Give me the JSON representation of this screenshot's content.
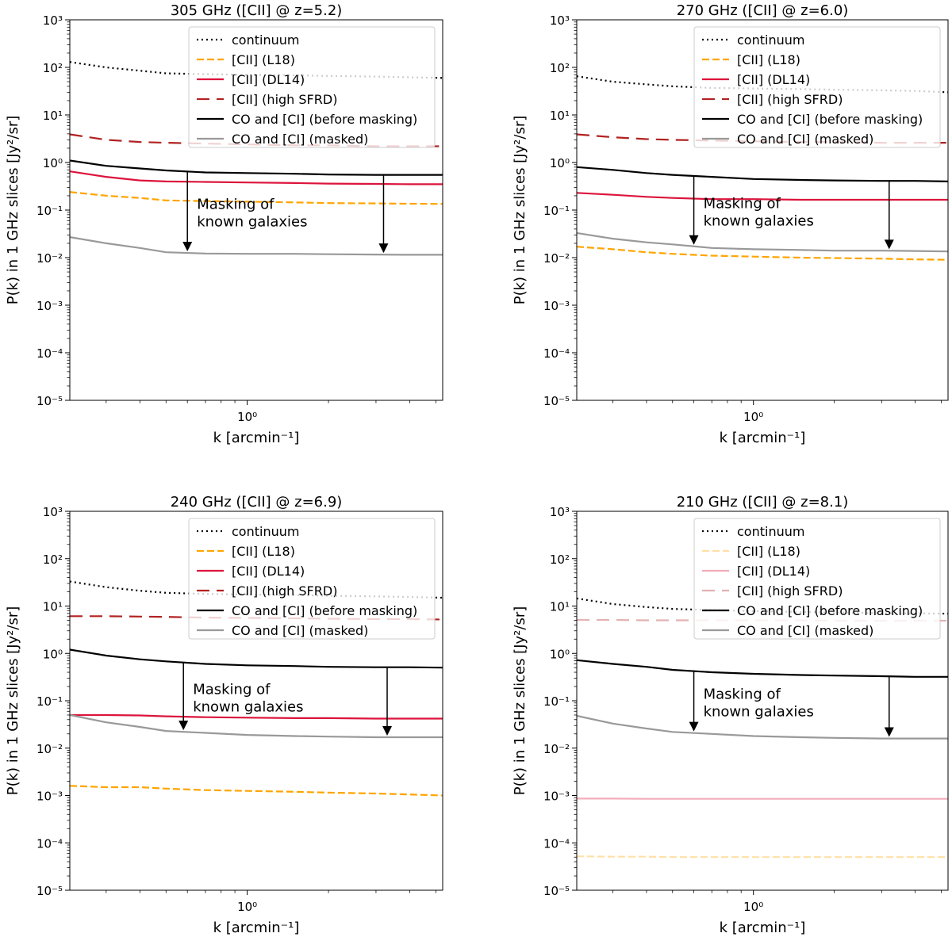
{
  "chart_data": [
    {
      "type": "line",
      "title": "305 GHz ([CII] @ z=5.2)",
      "xlabel": "k [arcmin⁻¹]",
      "ylabel": "P(k) in 1 GHz slices [Jy²/sr]",
      "xscale": "log",
      "yscale": "log",
      "xlim": [
        0.22,
        5.3
      ],
      "ylim": [
        1e-05,
        1000
      ],
      "x_tick_labels": [
        "10⁰"
      ],
      "y_tick_labels": [
        "10⁻⁵",
        "10⁻⁴",
        "10⁻³",
        "10⁻²",
        "10⁻¹",
        "10⁰",
        "10¹",
        "10²",
        "10³"
      ],
      "legend_position": "top-right",
      "annotation": {
        "line1": "Masking of",
        "line2": "known galaxies",
        "arrows_at_k": [
          0.6,
          3.2
        ]
      },
      "series": [
        {
          "name": "continuum",
          "style": "dotted",
          "color": "#000000",
          "faded": false,
          "x": [
            0.22,
            0.3,
            0.4,
            0.5,
            0.7,
            1.0,
            1.5,
            2.0,
            3.0,
            4.0,
            5.3
          ],
          "y": [
            130,
            100,
            85,
            75,
            72,
            70,
            68,
            66,
            64,
            62,
            60
          ]
        },
        {
          "name": "[CII] (L18)",
          "style": "dashed",
          "color": "#ffa500",
          "faded": false,
          "x": [
            0.22,
            0.3,
            0.4,
            0.5,
            0.7,
            1.0,
            1.5,
            2.0,
            3.0,
            4.0,
            5.3
          ],
          "y": [
            0.24,
            0.2,
            0.18,
            0.16,
            0.155,
            0.15,
            0.145,
            0.14,
            0.138,
            0.136,
            0.135
          ]
        },
        {
          "name": "[CII] (DL14)",
          "style": "solid",
          "color": "#dc143c",
          "faded": false,
          "x": [
            0.22,
            0.3,
            0.4,
            0.5,
            0.7,
            1.0,
            1.5,
            2.0,
            3.0,
            4.0,
            5.3
          ],
          "y": [
            0.65,
            0.5,
            0.42,
            0.4,
            0.39,
            0.38,
            0.37,
            0.36,
            0.355,
            0.35,
            0.35
          ]
        },
        {
          "name": "[CII] (high SFRD)",
          "style": "longdash",
          "color": "#b22222",
          "faded": false,
          "x": [
            0.22,
            0.3,
            0.4,
            0.5,
            0.7,
            1.0,
            1.5,
            2.0,
            3.0,
            4.0,
            5.3
          ],
          "y": [
            3.9,
            3.0,
            2.7,
            2.6,
            2.5,
            2.4,
            2.3,
            2.3,
            2.2,
            2.2,
            2.2
          ]
        },
        {
          "name": "CO and [CI] (before masking)",
          "style": "solid",
          "color": "#000000",
          "faded": false,
          "x": [
            0.22,
            0.3,
            0.4,
            0.5,
            0.7,
            1.0,
            1.5,
            2.0,
            3.0,
            4.0,
            5.3
          ],
          "y": [
            1.1,
            0.85,
            0.75,
            0.68,
            0.62,
            0.6,
            0.58,
            0.56,
            0.55,
            0.55,
            0.55
          ]
        },
        {
          "name": "CO and [CI] (masked)",
          "style": "solid",
          "color": "#999999",
          "faded": false,
          "x": [
            0.22,
            0.3,
            0.4,
            0.5,
            0.7,
            1.0,
            1.5,
            2.0,
            3.0,
            4.0,
            5.3
          ],
          "y": [
            0.027,
            0.02,
            0.016,
            0.013,
            0.0122,
            0.012,
            0.012,
            0.0118,
            0.0116,
            0.0115,
            0.0115
          ]
        }
      ]
    },
    {
      "type": "line",
      "title": "270 GHz ([CII] @ z=6.0)",
      "xlabel": "k [arcmin⁻¹]",
      "ylabel": "P(k) in 1 GHz slices [Jy²/sr]",
      "xscale": "log",
      "yscale": "log",
      "xlim": [
        0.22,
        5.3
      ],
      "ylim": [
        1e-05,
        1000
      ],
      "x_tick_labels": [
        "10⁰"
      ],
      "y_tick_labels": [
        "10⁻⁵",
        "10⁻⁴",
        "10⁻³",
        "10⁻²",
        "10⁻¹",
        "10⁰",
        "10¹",
        "10²",
        "10³"
      ],
      "legend_position": "top-right",
      "annotation": {
        "line1": "Masking of",
        "line2": "known galaxies",
        "arrows_at_k": [
          0.6,
          3.2
        ]
      },
      "series": [
        {
          "name": "continuum",
          "style": "dotted",
          "color": "#000000",
          "faded": false,
          "x": [
            0.22,
            0.3,
            0.4,
            0.5,
            0.7,
            1.0,
            1.5,
            2.0,
            3.0,
            4.0,
            5.3
          ],
          "y": [
            65,
            50,
            44,
            40,
            37,
            36,
            35,
            34,
            33,
            32,
            30
          ]
        },
        {
          "name": "[CII] (L18)",
          "style": "dashed",
          "color": "#ffa500",
          "faded": false,
          "x": [
            0.22,
            0.3,
            0.4,
            0.5,
            0.7,
            1.0,
            1.5,
            2.0,
            3.0,
            4.0,
            5.3
          ],
          "y": [
            0.017,
            0.015,
            0.013,
            0.012,
            0.011,
            0.0105,
            0.01,
            0.0098,
            0.0095,
            0.0092,
            0.009
          ]
        },
        {
          "name": "[CII] (DL14)",
          "style": "solid",
          "color": "#dc143c",
          "faded": false,
          "x": [
            0.22,
            0.3,
            0.4,
            0.5,
            0.7,
            1.0,
            1.5,
            2.0,
            3.0,
            4.0,
            5.3
          ],
          "y": [
            0.23,
            0.21,
            0.19,
            0.18,
            0.17,
            0.17,
            0.165,
            0.165,
            0.165,
            0.165,
            0.165
          ]
        },
        {
          "name": "[CII] (high SFRD)",
          "style": "longdash",
          "color": "#b22222",
          "faded": false,
          "x": [
            0.22,
            0.3,
            0.4,
            0.5,
            0.7,
            1.0,
            1.5,
            2.0,
            3.0,
            4.0,
            5.3
          ],
          "y": [
            3.9,
            3.4,
            3.1,
            3.0,
            2.9,
            2.8,
            2.7,
            2.7,
            2.6,
            2.6,
            2.6
          ]
        },
        {
          "name": "CO and [CI] (before masking)",
          "style": "solid",
          "color": "#000000",
          "faded": false,
          "x": [
            0.22,
            0.3,
            0.4,
            0.5,
            0.7,
            1.0,
            1.5,
            2.0,
            3.0,
            4.0,
            5.3
          ],
          "y": [
            0.8,
            0.7,
            0.6,
            0.55,
            0.5,
            0.45,
            0.43,
            0.42,
            0.41,
            0.41,
            0.4
          ]
        },
        {
          "name": "CO and [CI] (masked)",
          "style": "solid",
          "color": "#999999",
          "faded": false,
          "x": [
            0.22,
            0.3,
            0.4,
            0.5,
            0.7,
            1.0,
            1.5,
            2.0,
            3.0,
            4.0,
            5.3
          ],
          "y": [
            0.033,
            0.025,
            0.021,
            0.019,
            0.016,
            0.015,
            0.0145,
            0.014,
            0.014,
            0.0138,
            0.0135
          ]
        }
      ]
    },
    {
      "type": "line",
      "title": "240 GHz ([CII] @ z=6.9)",
      "xlabel": "k [arcmin⁻¹]",
      "ylabel": "P(k) in 1 GHz slices [Jy²/sr]",
      "xscale": "log",
      "yscale": "log",
      "xlim": [
        0.22,
        5.3
      ],
      "ylim": [
        1e-05,
        1000
      ],
      "x_tick_labels": [
        "10⁰"
      ],
      "y_tick_labels": [
        "10⁻⁵",
        "10⁻⁴",
        "10⁻³",
        "10⁻²",
        "10⁻¹",
        "10⁰",
        "10¹",
        "10²",
        "10³"
      ],
      "legend_position": "top-right",
      "annotation": {
        "line1": "Masking of",
        "line2": "known galaxies",
        "arrows_at_k": [
          0.58,
          3.3
        ]
      },
      "series": [
        {
          "name": "continuum",
          "style": "dotted",
          "color": "#000000",
          "faded": false,
          "x": [
            0.22,
            0.3,
            0.4,
            0.5,
            0.7,
            1.0,
            1.5,
            2.0,
            3.0,
            4.0,
            5.3
          ],
          "y": [
            33,
            25,
            21,
            19,
            18,
            17.5,
            17,
            16.5,
            16,
            15.5,
            15
          ]
        },
        {
          "name": "[CII] (L18)",
          "style": "dashed",
          "color": "#ffa500",
          "faded": false,
          "x": [
            0.22,
            0.3,
            0.4,
            0.5,
            0.7,
            1.0,
            1.5,
            2.0,
            3.0,
            4.0,
            5.3
          ],
          "y": [
            0.0016,
            0.0015,
            0.0015,
            0.0014,
            0.0013,
            0.00125,
            0.0012,
            0.00115,
            0.0011,
            0.00105,
            0.001
          ]
        },
        {
          "name": "[CII] (DL14)",
          "style": "solid",
          "color": "#dc143c",
          "faded": false,
          "x": [
            0.22,
            0.3,
            0.4,
            0.5,
            0.7,
            1.0,
            1.5,
            2.0,
            3.0,
            4.0,
            5.3
          ],
          "y": [
            0.05,
            0.05,
            0.049,
            0.047,
            0.045,
            0.044,
            0.043,
            0.043,
            0.042,
            0.042,
            0.042
          ]
        },
        {
          "name": "[CII] (high SFRD)",
          "style": "longdash",
          "color": "#b22222",
          "faded": false,
          "x": [
            0.22,
            0.3,
            0.4,
            0.5,
            0.7,
            1.0,
            1.5,
            2.0,
            3.0,
            4.0,
            5.3
          ],
          "y": [
            6.1,
            6.1,
            6.0,
            5.9,
            5.7,
            5.6,
            5.5,
            5.4,
            5.3,
            5.3,
            5.2
          ]
        },
        {
          "name": "CO and [CI] (before masking)",
          "style": "solid",
          "color": "#000000",
          "faded": false,
          "x": [
            0.22,
            0.3,
            0.4,
            0.5,
            0.7,
            1.0,
            1.5,
            2.0,
            3.0,
            4.0,
            5.3
          ],
          "y": [
            1.2,
            0.9,
            0.75,
            0.68,
            0.6,
            0.56,
            0.54,
            0.52,
            0.51,
            0.51,
            0.5
          ]
        },
        {
          "name": "CO and [CI] (masked)",
          "style": "solid",
          "color": "#999999",
          "faded": false,
          "x": [
            0.22,
            0.3,
            0.4,
            0.5,
            0.7,
            1.0,
            1.5,
            2.0,
            3.0,
            4.0,
            5.3
          ],
          "y": [
            0.05,
            0.035,
            0.028,
            0.023,
            0.021,
            0.019,
            0.018,
            0.0175,
            0.017,
            0.017,
            0.017
          ]
        }
      ]
    },
    {
      "type": "line",
      "title": "210 GHz ([CII] @ z=8.1)",
      "xlabel": "k [arcmin⁻¹]",
      "ylabel": "P(k) in 1 GHz slices [Jy²/sr]",
      "xscale": "log",
      "yscale": "log",
      "xlim": [
        0.22,
        5.3
      ],
      "ylim": [
        1e-05,
        1000
      ],
      "x_tick_labels": [
        "10⁰"
      ],
      "y_tick_labels": [
        "10⁻⁵",
        "10⁻⁴",
        "10⁻³",
        "10⁻²",
        "10⁻¹",
        "10⁰",
        "10¹",
        "10²",
        "10³"
      ],
      "legend_position": "top-right",
      "annotation": {
        "line1": "Masking of",
        "line2": "known galaxies",
        "arrows_at_k": [
          0.6,
          3.2
        ]
      },
      "series": [
        {
          "name": "continuum",
          "style": "dotted",
          "color": "#000000",
          "faded": false,
          "x": [
            0.22,
            0.3,
            0.4,
            0.5,
            0.7,
            1.0,
            1.5,
            2.0,
            3.0,
            4.0,
            5.3
          ],
          "y": [
            14.5,
            11,
            9.5,
            8.7,
            8.2,
            7.8,
            7.5,
            7.3,
            7.1,
            7.0,
            6.9
          ]
        },
        {
          "name": "[CII] (L18)",
          "style": "dashed",
          "color": "#ffa500",
          "faded": true,
          "x": [
            0.22,
            0.3,
            0.4,
            0.5,
            0.7,
            1.0,
            1.5,
            2.0,
            3.0,
            4.0,
            5.3
          ],
          "y": [
            5.2e-05,
            5.1e-05,
            5.1e-05,
            5e-05,
            5e-05,
            5e-05,
            5e-05,
            5e-05,
            5e-05,
            5e-05,
            5e-05
          ]
        },
        {
          "name": "[CII] (DL14)",
          "style": "solid",
          "color": "#dc143c",
          "faded": true,
          "x": [
            0.22,
            0.3,
            0.4,
            0.5,
            0.7,
            1.0,
            1.5,
            2.0,
            3.0,
            4.0,
            5.3
          ],
          "y": [
            0.00086,
            0.00086,
            0.00085,
            0.00085,
            0.00085,
            0.00085,
            0.00085,
            0.00085,
            0.00085,
            0.00085,
            0.00085
          ]
        },
        {
          "name": "[CII] (high SFRD)",
          "style": "longdash",
          "color": "#b22222",
          "faded": true,
          "x": [
            0.22,
            0.3,
            0.4,
            0.5,
            0.7,
            1.0,
            1.5,
            2.0,
            3.0,
            4.0,
            5.3
          ],
          "y": [
            5.1,
            5.1,
            5.0,
            5.0,
            5.0,
            5.0,
            5.0,
            4.9,
            4.9,
            4.9,
            4.9
          ]
        },
        {
          "name": "CO and [CI] (before masking)",
          "style": "solid",
          "color": "#000000",
          "faded": false,
          "x": [
            0.22,
            0.3,
            0.4,
            0.5,
            0.7,
            1.0,
            1.5,
            2.0,
            3.0,
            4.0,
            5.3
          ],
          "y": [
            0.72,
            0.6,
            0.52,
            0.45,
            0.4,
            0.37,
            0.35,
            0.34,
            0.33,
            0.32,
            0.32
          ]
        },
        {
          "name": "CO and [CI] (masked)",
          "style": "solid",
          "color": "#999999",
          "faded": false,
          "x": [
            0.22,
            0.3,
            0.4,
            0.5,
            0.7,
            1.0,
            1.5,
            2.0,
            3.0,
            4.0,
            5.3
          ],
          "y": [
            0.048,
            0.033,
            0.026,
            0.022,
            0.02,
            0.018,
            0.017,
            0.0165,
            0.016,
            0.016,
            0.016
          ]
        }
      ]
    }
  ]
}
